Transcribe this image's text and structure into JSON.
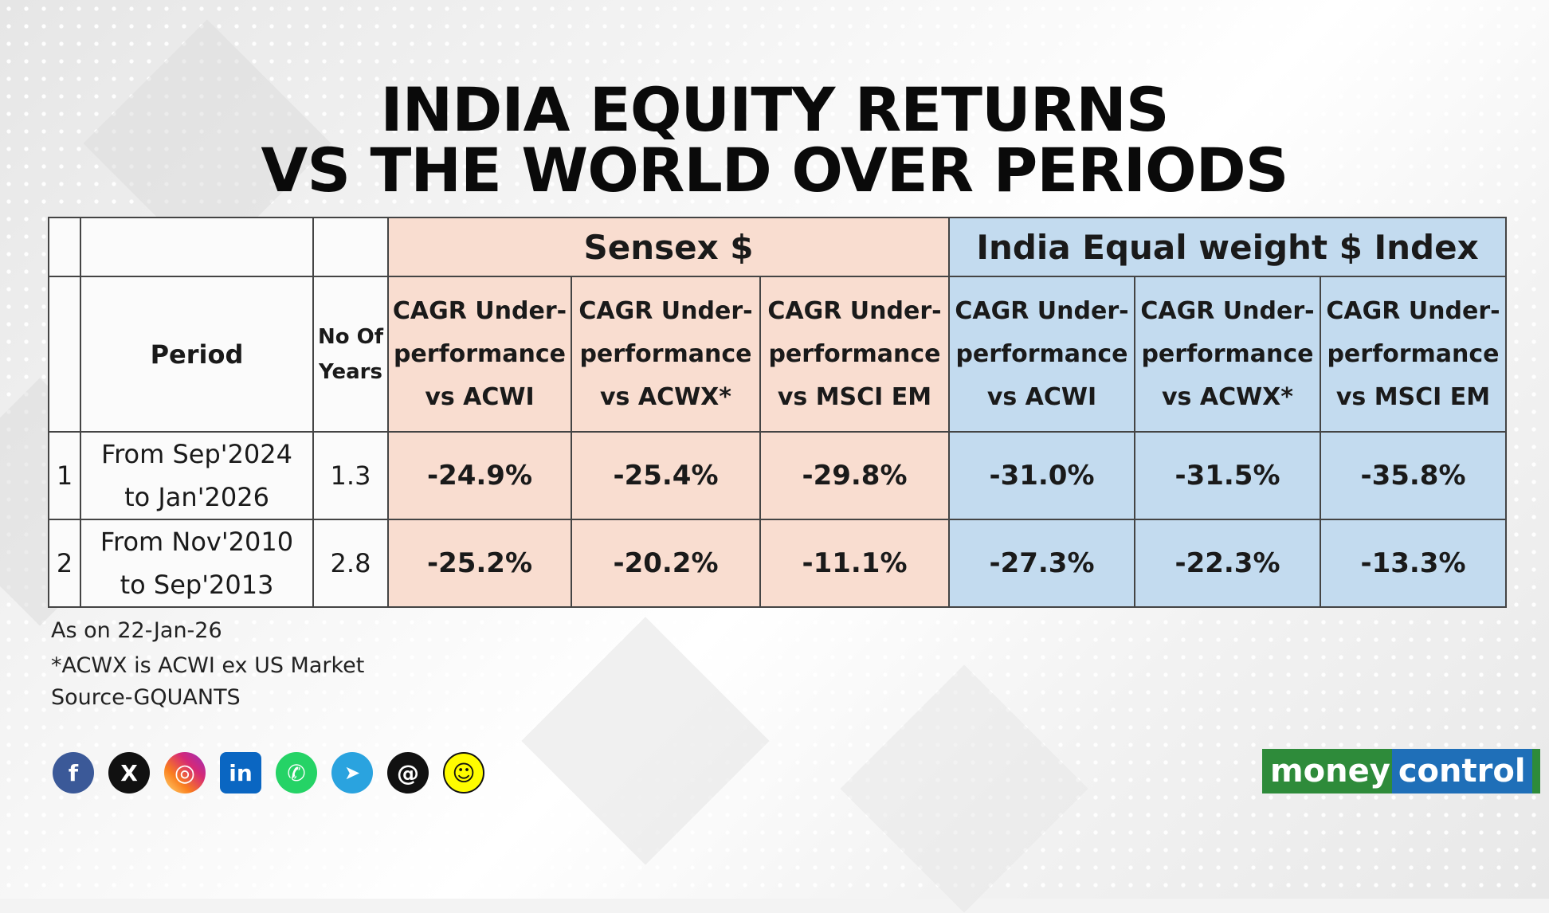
{
  "title": {
    "line1": "INDIA EQUITY RETURNS",
    "line2": "VS THE WORLD OVER PERIODS"
  },
  "table": {
    "groups": {
      "sensex": "Sensex $",
      "india_ew": "India Equal weight $ Index"
    },
    "headers": {
      "period": "Period",
      "years_line1": "No Of",
      "years_line2": "Years",
      "cols": [
        {
          "l1": "CAGR Under-",
          "l2": "performance",
          "l3": "vs ACWI"
        },
        {
          "l1": "CAGR Under-",
          "l2": "performance",
          "l3": "vs ACWX*"
        },
        {
          "l1": "CAGR Under-",
          "l2": "performance",
          "l3": "vs MSCI EM"
        },
        {
          "l1": "CAGR Under-",
          "l2": "performance",
          "l3": "vs ACWI"
        },
        {
          "l1": "CAGR Under-",
          "l2": "performance",
          "l3": "vs ACWX*"
        },
        {
          "l1": "CAGR Under-",
          "l2": "performance",
          "l3": "vs MSCI EM"
        }
      ]
    },
    "rows": [
      {
        "index": "1",
        "period_line1": "From Sep'2024",
        "period_line2": "to Jan'2026",
        "years": "1.3",
        "values": [
          "-24.9%",
          "-25.4%",
          "-29.8%",
          "-31.0%",
          "-31.5%",
          "-35.8%"
        ]
      },
      {
        "index": "2",
        "period_line1": "From Nov'2010",
        "period_line2": "to Sep'2013",
        "years": "2.8",
        "values": [
          "-25.2%",
          "-20.2%",
          "-11.1%",
          "-27.3%",
          "-22.3%",
          "-13.3%"
        ]
      }
    ]
  },
  "notes": {
    "as_on": "As on 22-Jan-26",
    "acwx": "*ACWX is ACWI ex US Market",
    "source": "Source-GQUANTS"
  },
  "social": [
    {
      "name": "facebook-icon",
      "glyph": "f",
      "color": "#3b5998"
    },
    {
      "name": "x-icon",
      "glyph": "X",
      "color": "#111111"
    },
    {
      "name": "instagram-icon",
      "glyph": "◎",
      "color": "#d62976"
    },
    {
      "name": "linkedin-icon",
      "glyph": "in",
      "color": "#0a66c2"
    },
    {
      "name": "whatsapp-icon",
      "glyph": "✆",
      "color": "#25d366"
    },
    {
      "name": "telegram-icon",
      "glyph": "➤",
      "color": "#2aa3df"
    },
    {
      "name": "threads-icon",
      "glyph": "@",
      "color": "#111111"
    },
    {
      "name": "snapchat-icon",
      "glyph": "☺",
      "color": "#fffc00"
    }
  ],
  "logo": {
    "part1": "money",
    "part2": "control"
  },
  "colors": {
    "sensex_bg": "#f9ddd0",
    "india_ew_bg": "#c3dbef",
    "logo_green": "#2e8b3a",
    "logo_blue": "#1f6fb8"
  }
}
